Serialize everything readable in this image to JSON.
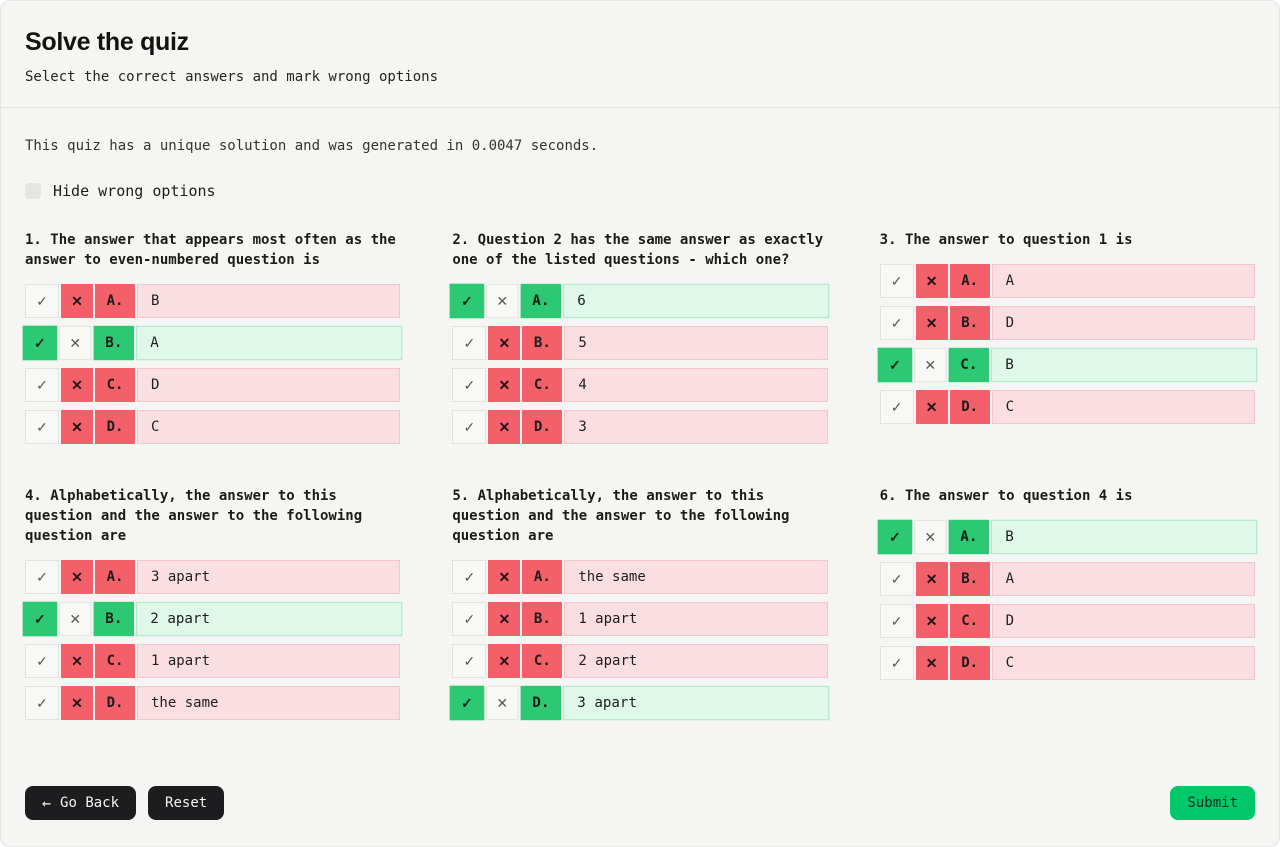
{
  "page": {
    "title": "Solve the quiz",
    "subtitle": "Select the correct answers and mark wrong options",
    "info": "This quiz has a unique solution and was generated in 0.0047 seconds.",
    "hide_wrong_label": "Hide wrong options"
  },
  "icons": {
    "check": "✓",
    "cross": "✕",
    "back_arrow": "←"
  },
  "colors": {
    "correct_green": "#2dc873",
    "correct_row_bg": "#dff8e9",
    "wrong_red": "#f4606a",
    "wrong_row_bg": "#fbdee1",
    "submit_green": "#00c767",
    "dark_button": "#1d1d1f"
  },
  "questions": [
    {
      "title": "1. The answer that appears most often as the answer to even-numbered question is",
      "options": [
        {
          "letter": "A.",
          "text": "B",
          "state": "wrong"
        },
        {
          "letter": "B.",
          "text": "A",
          "state": "correct"
        },
        {
          "letter": "C.",
          "text": "D",
          "state": "wrong"
        },
        {
          "letter": "D.",
          "text": "C",
          "state": "wrong"
        }
      ]
    },
    {
      "title": "2. Question 2 has the same answer as exactly one of the listed questions - which one?",
      "options": [
        {
          "letter": "A.",
          "text": "6",
          "state": "correct"
        },
        {
          "letter": "B.",
          "text": "5",
          "state": "wrong"
        },
        {
          "letter": "C.",
          "text": "4",
          "state": "wrong"
        },
        {
          "letter": "D.",
          "text": "3",
          "state": "wrong"
        }
      ]
    },
    {
      "title": "3. The answer to question 1 is",
      "options": [
        {
          "letter": "A.",
          "text": "A",
          "state": "wrong"
        },
        {
          "letter": "B.",
          "text": "D",
          "state": "wrong"
        },
        {
          "letter": "C.",
          "text": "B",
          "state": "correct"
        },
        {
          "letter": "D.",
          "text": "C",
          "state": "wrong"
        }
      ]
    },
    {
      "title": "4. Alphabetically, the answer to this question and the answer to the following question are",
      "options": [
        {
          "letter": "A.",
          "text": "3 apart",
          "state": "wrong"
        },
        {
          "letter": "B.",
          "text": "2 apart",
          "state": "correct"
        },
        {
          "letter": "C.",
          "text": "1 apart",
          "state": "wrong"
        },
        {
          "letter": "D.",
          "text": "the same",
          "state": "wrong"
        }
      ]
    },
    {
      "title": "5. Alphabetically, the answer to this question and the answer to the following question are",
      "options": [
        {
          "letter": "A.",
          "text": "the same",
          "state": "wrong"
        },
        {
          "letter": "B.",
          "text": "1 apart",
          "state": "wrong"
        },
        {
          "letter": "C.",
          "text": "2 apart",
          "state": "wrong"
        },
        {
          "letter": "D.",
          "text": "3 apart",
          "state": "correct"
        }
      ]
    },
    {
      "title": "6. The answer to question 4 is",
      "options": [
        {
          "letter": "A.",
          "text": "B",
          "state": "correct"
        },
        {
          "letter": "B.",
          "text": "A",
          "state": "wrong"
        },
        {
          "letter": "C.",
          "text": "D",
          "state": "wrong"
        },
        {
          "letter": "D.",
          "text": "C",
          "state": "wrong"
        }
      ]
    }
  ],
  "footer": {
    "go_back": "Go Back",
    "reset": "Reset",
    "submit": "Submit"
  }
}
